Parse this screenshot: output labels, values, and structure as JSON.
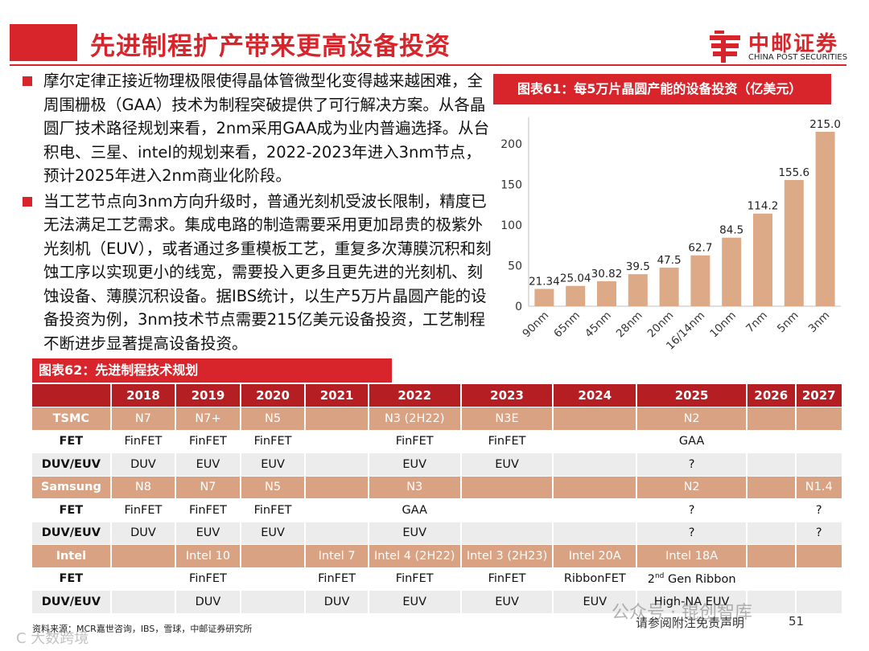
{
  "header": {
    "title": "先进制程扩产带来更高设备投资",
    "logo_cn": "中邮证券",
    "logo_en": "CHINA POST SECURITIES"
  },
  "bullets": [
    "摩尔定律正接近物理极限使得晶体管微型化变得越来越困难，全周围栅极（GAA）技术为制程突破提供了可行解决方案。从各晶圆厂技术路径规划来看，2nm采用GAA成为业内普遍选择。从台积电、三星、intel的规划来看，2022-2023年进入3nm节点，预计2025年进入2nm商业化阶段。",
    "当工艺节点向3nm方向升级时，普通光刻机受波长限制，精度已无法满足工艺需求。集成电路的制造需要采用更加昂贵的极紫外光刻机（EUV），或者通过多重模板工艺，重复多次薄膜沉积和刻蚀工序以实现更小的线宽，需要投入更多且更先进的光刻机、刻蚀设备、薄膜沉积设备。据IBS统计，以生产5万片晶圆产能的设备投资为例，3nm技术节点需要215亿美元设备投资，工艺制程不断进步显著提高设备投资。"
  ],
  "chart_title": "图表61：每5万片晶圆产能的设备投资（亿美元）",
  "chart_data": {
    "type": "bar",
    "title": "每5万片晶圆产能的设备投资（亿美元）",
    "categories": [
      "90nm",
      "65nm",
      "45nm",
      "28nm",
      "20nm",
      "16/14nm",
      "10nm",
      "7nm",
      "5nm",
      "3nm"
    ],
    "values": [
      21.34,
      25.04,
      30.82,
      39.5,
      47.5,
      62.7,
      84.5,
      114.2,
      155.6,
      215.0
    ],
    "value_labels": [
      "21.34",
      "25.04",
      "30.82",
      "39.5",
      "47.5",
      "62.7",
      "84.5",
      "114.2",
      "155.6",
      "215.0"
    ],
    "yticks": [
      "0",
      "50",
      "100",
      "150",
      "200"
    ],
    "ylim": [
      0,
      215
    ],
    "bar_color": "#dcaa86",
    "xlabel": "",
    "ylabel": ""
  },
  "table_title": "图表62：先进制程技术规划",
  "table": {
    "years": [
      "2018",
      "2019",
      "2020",
      "2021",
      "2022",
      "2023",
      "2024",
      "2025",
      "2026",
      "2027"
    ],
    "tsmc": {
      "name": "TSMC",
      "nodes": [
        "N7",
        "N7+",
        "N5",
        "",
        "N3 (2H22)",
        "N3E",
        "",
        "N2",
        "",
        ""
      ],
      "fet_label": "FET",
      "fet": [
        "FinFET",
        "FinFET",
        "FinFET",
        "",
        "FinFET",
        "FinFET",
        "",
        "GAA",
        "",
        ""
      ],
      "litho_label": "DUV/EUV",
      "litho": [
        "DUV",
        "EUV",
        "EUV",
        "",
        "EUV",
        "EUV",
        "",
        "?",
        "",
        ""
      ]
    },
    "samsung": {
      "name": "Samsung",
      "nodes": [
        "N8",
        "N7",
        "N5",
        "",
        "N3",
        "",
        "",
        "N2",
        "",
        "N1.4"
      ],
      "fet_label": "FET",
      "fet": [
        "FinFET",
        "FinFET",
        "FinFET",
        "",
        "GAA",
        "",
        "",
        "?",
        "",
        "?"
      ],
      "litho_label": "DUV/EUV",
      "litho": [
        "DUV",
        "EUV",
        "EUV",
        "",
        "EUV",
        "",
        "",
        "?",
        "",
        "?"
      ]
    },
    "intel": {
      "name": "Intel",
      "nodes": [
        "",
        "Intel 10",
        "",
        "Intel 7",
        "Intel 4 (2H22)",
        "Intel 3 (2H23)",
        "Intel 20A",
        "Intel 18A",
        "",
        ""
      ],
      "fet_label": "FET",
      "fet": [
        "",
        "FinFET",
        "",
        "FinFET",
        "FinFET",
        "FinFET",
        "RibbonFET",
        "Gen Ribbon",
        "",
        ""
      ],
      "fet_2025_prefix": "2",
      "fet_2025_sup": "nd",
      "litho_label": "DUV/EUV",
      "litho": [
        "",
        "DUV",
        "",
        "DUV",
        "EUV",
        "EUV",
        "EUV",
        "High-NA EUV",
        "",
        ""
      ]
    }
  },
  "footer": {
    "source": "资料来源：MCR嘉世咨询，IBS，雪球，中邮证券研究所",
    "disclaimer": "请参阅附注免责声明",
    "page": "51",
    "watermark1": "公众号 · 锟创智库",
    "watermark2": "C 大数跨境"
  }
}
